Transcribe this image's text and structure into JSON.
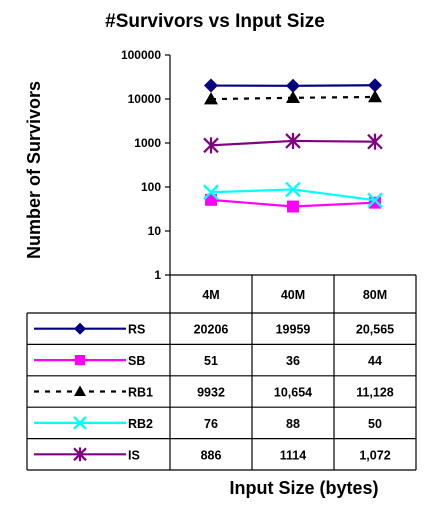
{
  "chart_data": {
    "type": "line",
    "title": "#Survivors vs Input Size",
    "ylabel": "Number of Survivors",
    "xlabel": "Input Size (bytes)",
    "y_scale": "log",
    "ylim": [
      1,
      100000
    ],
    "yticks": [
      "1",
      "10",
      "100",
      "1000",
      "10000",
      "100000"
    ],
    "categories": [
      "4M",
      "40M",
      "80M"
    ],
    "grid": false,
    "legend": "data-table-below",
    "series": [
      {
        "name": "RS",
        "values": [
          20206,
          19959,
          20565
        ],
        "labels": [
          "20206",
          "19959",
          "20,565"
        ],
        "color": "#000080",
        "marker": "diamond",
        "dash": "solid"
      },
      {
        "name": "SB",
        "values": [
          51,
          36,
          44
        ],
        "labels": [
          "51",
          "36",
          "44"
        ],
        "color": "#ff00ff",
        "marker": "square",
        "dash": "solid"
      },
      {
        "name": "RB1",
        "values": [
          9932,
          10654,
          11128
        ],
        "labels": [
          "9932",
          "10,654",
          "11,128"
        ],
        "color": "#000000",
        "marker": "triangle",
        "dash": "dashed"
      },
      {
        "name": "RB2",
        "values": [
          76,
          88,
          50
        ],
        "labels": [
          "76",
          "88",
          "50"
        ],
        "color": "#00ffff",
        "marker": "x",
        "dash": "solid"
      },
      {
        "name": "IS",
        "values": [
          886,
          1114,
          1072
        ],
        "labels": [
          "886",
          "1114",
          "1,072"
        ],
        "color": "#800080",
        "marker": "asterisk",
        "dash": "solid"
      }
    ]
  }
}
